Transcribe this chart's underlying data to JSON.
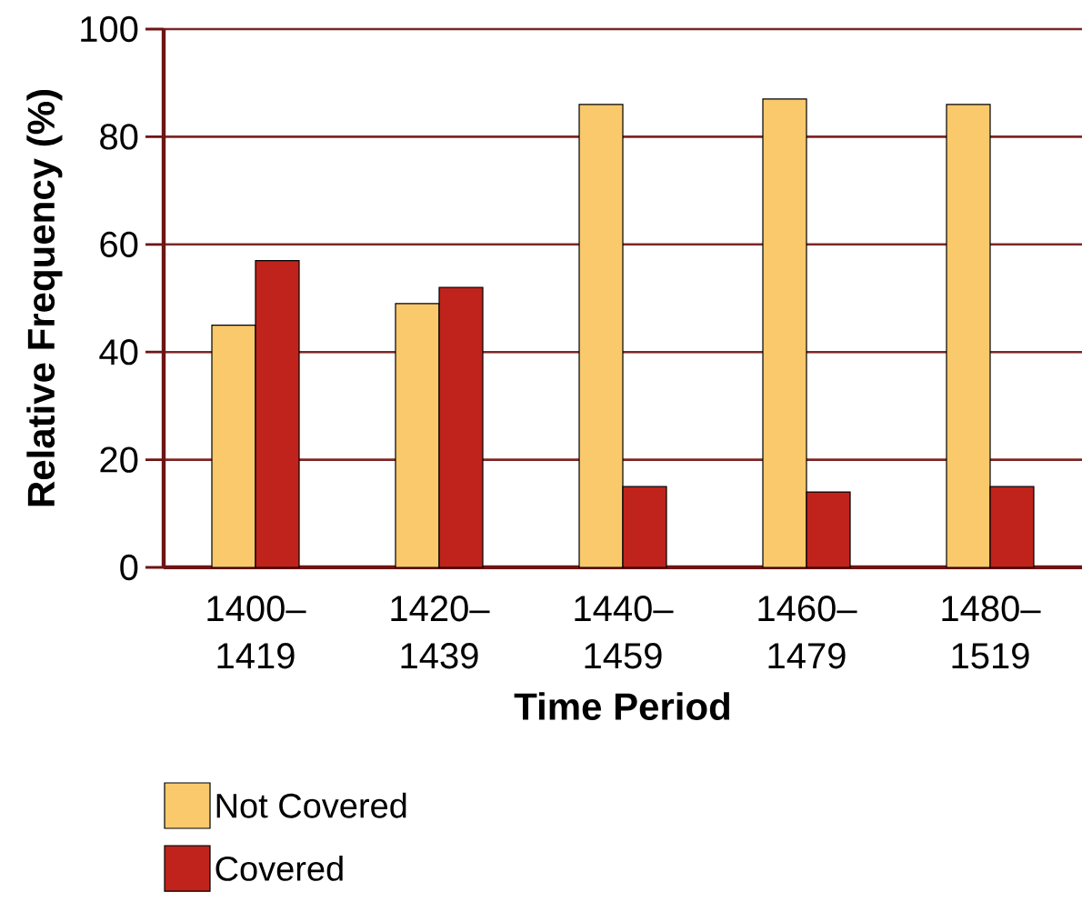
{
  "chart_data": {
    "type": "bar",
    "xlabel": "Time Period",
    "ylabel": "Relative Frequency (%)",
    "categories": [
      "1400–1419",
      "1420–1439",
      "1440–1459",
      "1460–1479",
      "1480–1519"
    ],
    "series": [
      {
        "name": "Not Covered",
        "color": "#f9c96b",
        "values": [
          45,
          49,
          86,
          87,
          86
        ]
      },
      {
        "name": "Covered",
        "color": "#c0231b",
        "values": [
          57,
          52,
          15,
          14,
          15
        ]
      }
    ],
    "ylim": [
      0,
      100
    ],
    "yticks": [
      0,
      20,
      40,
      60,
      80,
      100
    ],
    "grid": "y",
    "legend": "bottom left"
  }
}
